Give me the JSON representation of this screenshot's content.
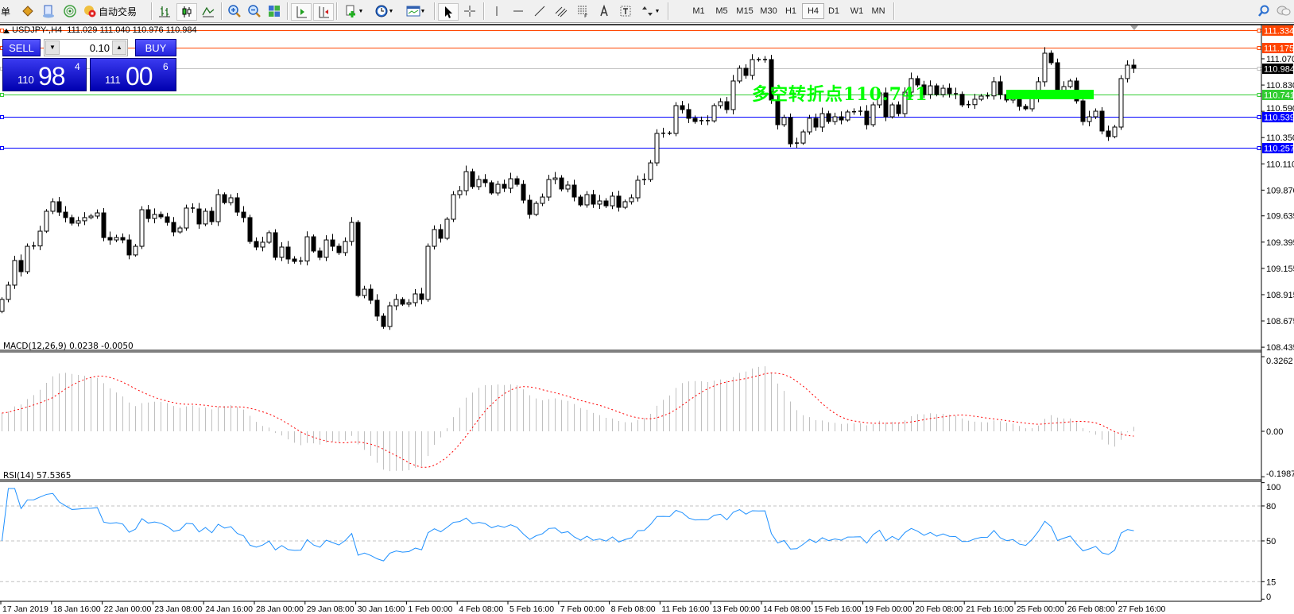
{
  "toolbar": {
    "cut_label": "单",
    "autotrade_label": "自动交易",
    "timeframes": [
      "M1",
      "M5",
      "M15",
      "M30",
      "H1",
      "H4",
      "D1",
      "W1",
      "MN"
    ],
    "active_timeframe": "H4",
    "icons": [
      "market-watch-icon",
      "new-order-icon",
      "signals-icon",
      "autotrade-icon",
      "bar-chart-icon",
      "candlestick-icon",
      "line-chart-icon",
      "zoom-in-icon",
      "zoom-out-icon",
      "tile-windows-icon",
      "autoscroll-icon",
      "chart-shift-icon",
      "indicators-icon",
      "periods-icon",
      "templates-icon",
      "cursor-icon",
      "crosshair-icon",
      "vertical-line-icon",
      "horizontal-line-icon",
      "trendline-icon",
      "equidistant-channel-icon",
      "fibonacci-icon",
      "text-icon",
      "text-label-icon",
      "arrows-icon",
      "search-icon",
      "chat-icon"
    ]
  },
  "chart": {
    "symbol_info": "USDJPY-,H4  111.029 111.040 110.976 110.984"
  },
  "trade_panel": {
    "sell_label": "SELL",
    "buy_label": "BUY",
    "lot": "0.10",
    "sell_price": {
      "big": "110",
      "main": "98",
      "pip": "4"
    },
    "buy_price": {
      "big": "111",
      "main": "00",
      "pip": "6"
    },
    "color": "#2222dd"
  },
  "annotation": {
    "text": "多空转折点110.741",
    "color": "#00ff00",
    "zone_color": "#00ff00"
  },
  "chart_data": {
    "type": "candlestick",
    "symbol": "USDJPY-",
    "timeframe": "H4",
    "first_open": 108.762,
    "closes": [
      108.871,
      109.002,
      109.227,
      109.125,
      109.357,
      109.36,
      109.495,
      109.677,
      109.764,
      109.669,
      109.619,
      109.568,
      109.59,
      109.619,
      109.633,
      109.662,
      109.437,
      109.415,
      109.437,
      109.415,
      109.278,
      109.357,
      109.691,
      109.611,
      109.648,
      109.626,
      109.575,
      109.488,
      109.524,
      109.706,
      109.698,
      109.561,
      109.677,
      109.582,
      109.829,
      109.756,
      109.8,
      109.669,
      109.619,
      109.401,
      109.35,
      109.394,
      109.481,
      109.256,
      109.35,
      109.241,
      109.219,
      109.222,
      109.444,
      109.314,
      109.256,
      109.415,
      109.357,
      109.299,
      109.401,
      109.575,
      108.907,
      108.965,
      108.864,
      108.719,
      108.624,
      108.813,
      108.871,
      108.828,
      108.842,
      108.922,
      108.871,
      109.357,
      109.51,
      109.43,
      109.604,
      109.829,
      109.865,
      110.039,
      109.902,
      109.967,
      109.938,
      109.844,
      109.923,
      109.887,
      109.974,
      109.923,
      109.778,
      109.648,
      109.749,
      109.807,
      109.967,
      109.981,
      109.88,
      109.916,
      109.807,
      109.735,
      109.829,
      109.742,
      109.771,
      109.727,
      109.815,
      109.713,
      109.764,
      109.8,
      109.96,
      109.967,
      110.119,
      110.388,
      110.39,
      110.388,
      110.642,
      110.606,
      110.526,
      110.497,
      110.505,
      110.503,
      110.642,
      110.678,
      110.606,
      110.867,
      110.983,
      110.918,
      111.063,
      111.06,
      111.063,
      110.693,
      110.468,
      110.533,
      110.293,
      110.3,
      110.402,
      110.526,
      110.446,
      110.569,
      110.497,
      110.54,
      110.511,
      110.584,
      110.586,
      110.591,
      110.468,
      110.649,
      110.758,
      110.54,
      110.649,
      110.569,
      110.765,
      110.889,
      110.831,
      110.743,
      110.823,
      110.743,
      110.801,
      110.751,
      110.745,
      110.649,
      110.651,
      110.7,
      110.729,
      110.731,
      110.86,
      110.743,
      110.693,
      110.714,
      110.635,
      110.613,
      110.707,
      110.86,
      111.121,
      111.034,
      110.758,
      110.816,
      110.867,
      110.685,
      110.497,
      110.54,
      110.591,
      110.41,
      110.359,
      110.446,
      110.889,
      111.012,
      110.984
    ],
    "price_ticks": [
      "111.070",
      "110.830",
      "110.590",
      "110.350",
      "110.110",
      "109.870",
      "109.635",
      "109.395",
      "109.155",
      "108.915",
      "108.675",
      "108.435"
    ],
    "hlines": [
      {
        "price": 111.334,
        "label": "111.334",
        "color": "#ff4500"
      },
      {
        "price": 111.175,
        "label": "111.175",
        "color": "#ff4500"
      },
      {
        "price": 110.984,
        "label": "110.984",
        "color": "#c0c0c0",
        "label_bg": "#000000"
      },
      {
        "price": 110.741,
        "label": "110.741",
        "color": "#32cd32"
      },
      {
        "price": 110.539,
        "label": "110.539",
        "color": "#0000ff"
      },
      {
        "price": 110.257,
        "label": "110.257",
        "color": "#0000ff"
      }
    ],
    "time_labels": [
      "17 Jan 2019",
      "18 Jan 16:00",
      "22 Jan 00:00",
      "23 Jan 08:00",
      "24 Jan 16:00",
      "28 Jan 00:00",
      "29 Jan 08:00",
      "30 Jan 16:00",
      "1 Feb 00:00",
      "4 Feb 08:00",
      "5 Feb 16:00",
      "7 Feb 00:00",
      "8 Feb 08:00",
      "11 Feb 16:00",
      "13 Feb 00:00",
      "14 Feb 08:00",
      "15 Feb 16:00",
      "19 Feb 00:00",
      "20 Feb 08:00",
      "21 Feb 16:00",
      "25 Feb 00:00",
      "26 Feb 08:00",
      "27 Feb 16:00"
    ],
    "candle_up_color": "#ffffff",
    "candle_down_color": "#000000",
    "macd": {
      "label": "MACD(12,26,9) 0.0238 -0.0050",
      "fast": 12,
      "slow": 26,
      "signal": 9,
      "ylim": [
        -0.1987,
        0.3262
      ],
      "ticks": [
        "0.3262",
        "0.00",
        "-0.1987"
      ],
      "hist_color": "#c0c0c0",
      "signal_color": "#ff0000"
    },
    "rsi": {
      "label": "RSI(14) 57.5365",
      "period": 14,
      "ylim": [
        0,
        100
      ],
      "ticks": [
        "100",
        "80",
        "50",
        "15",
        "0"
      ],
      "levels": [
        80,
        50,
        15
      ],
      "color": "#1e90ff"
    }
  }
}
